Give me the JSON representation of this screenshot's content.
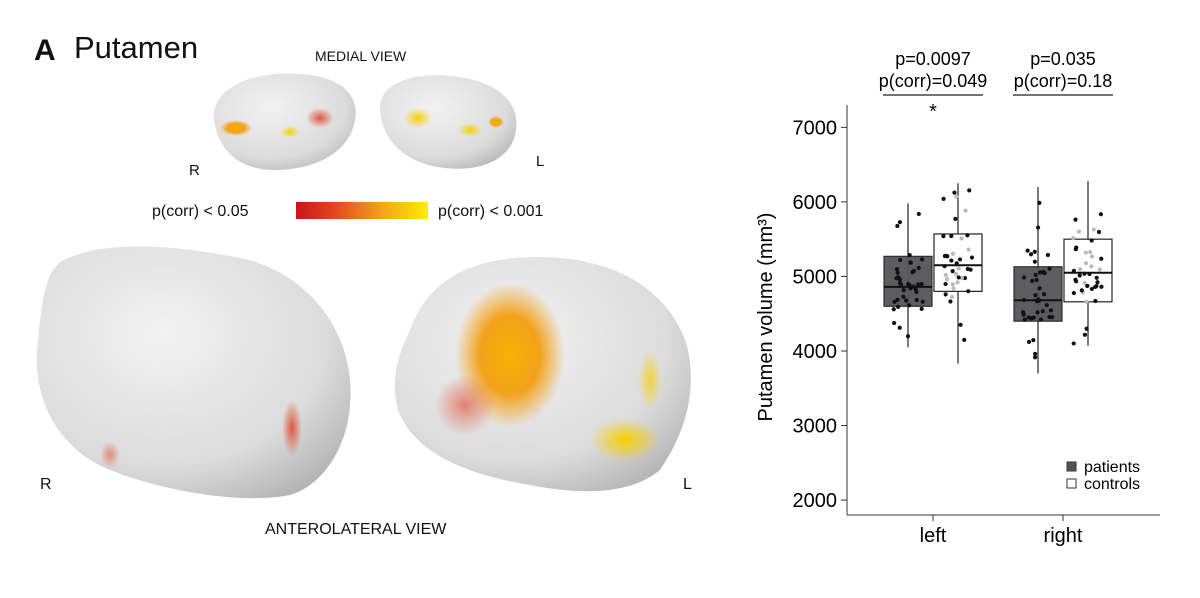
{
  "panel": {
    "letter": "A",
    "title": "Putamen"
  },
  "brain": {
    "medial_view_label": "MEDIAL VIEW",
    "anterolateral_view_label": "ANTEROLATERAL VIEW",
    "right_label": "R",
    "left_label": "L",
    "scale": {
      "low_label": "p(corr) < 0.05",
      "high_label": "p(corr) < 0.001",
      "low_color": "#c8141a",
      "high_color": "#ffef00"
    }
  },
  "colors": {
    "patients": "#555558",
    "controls": "#ffffff"
  },
  "chart_data": {
    "type": "box",
    "ylabel": "Putamen volume (mm³)",
    "ylim": [
      1800,
      7300
    ],
    "yticks": [
      "2000",
      "3000",
      "4000",
      "5000",
      "6000",
      "7000"
    ],
    "categories": [
      "left",
      "right"
    ],
    "legend": {
      "position": "bottom-right",
      "entries": [
        "patients",
        "controls"
      ]
    },
    "series": [
      {
        "name": "patients",
        "boxes": [
          {
            "min": 4050,
            "q1": 4600,
            "median": 4860,
            "q3": 5270,
            "max": 5980
          },
          {
            "min": 3700,
            "q1": 4400,
            "median": 4680,
            "q3": 5130,
            "max": 6200
          }
        ]
      },
      {
        "name": "controls",
        "boxes": [
          {
            "min": 3830,
            "q1": 4800,
            "median": 5150,
            "q3": 5570,
            "max": 6250
          },
          {
            "min": 4070,
            "q1": 4660,
            "median": 5050,
            "q3": 5500,
            "max": 6280
          }
        ]
      }
    ],
    "annotations": [
      {
        "category": "left",
        "p": "p=0.0097",
        "pcorr": "p(corr)=0.049",
        "sig": "*"
      },
      {
        "category": "right",
        "p": "p=0.035",
        "pcorr": "p(corr)=0.18",
        "sig": ""
      }
    ]
  }
}
